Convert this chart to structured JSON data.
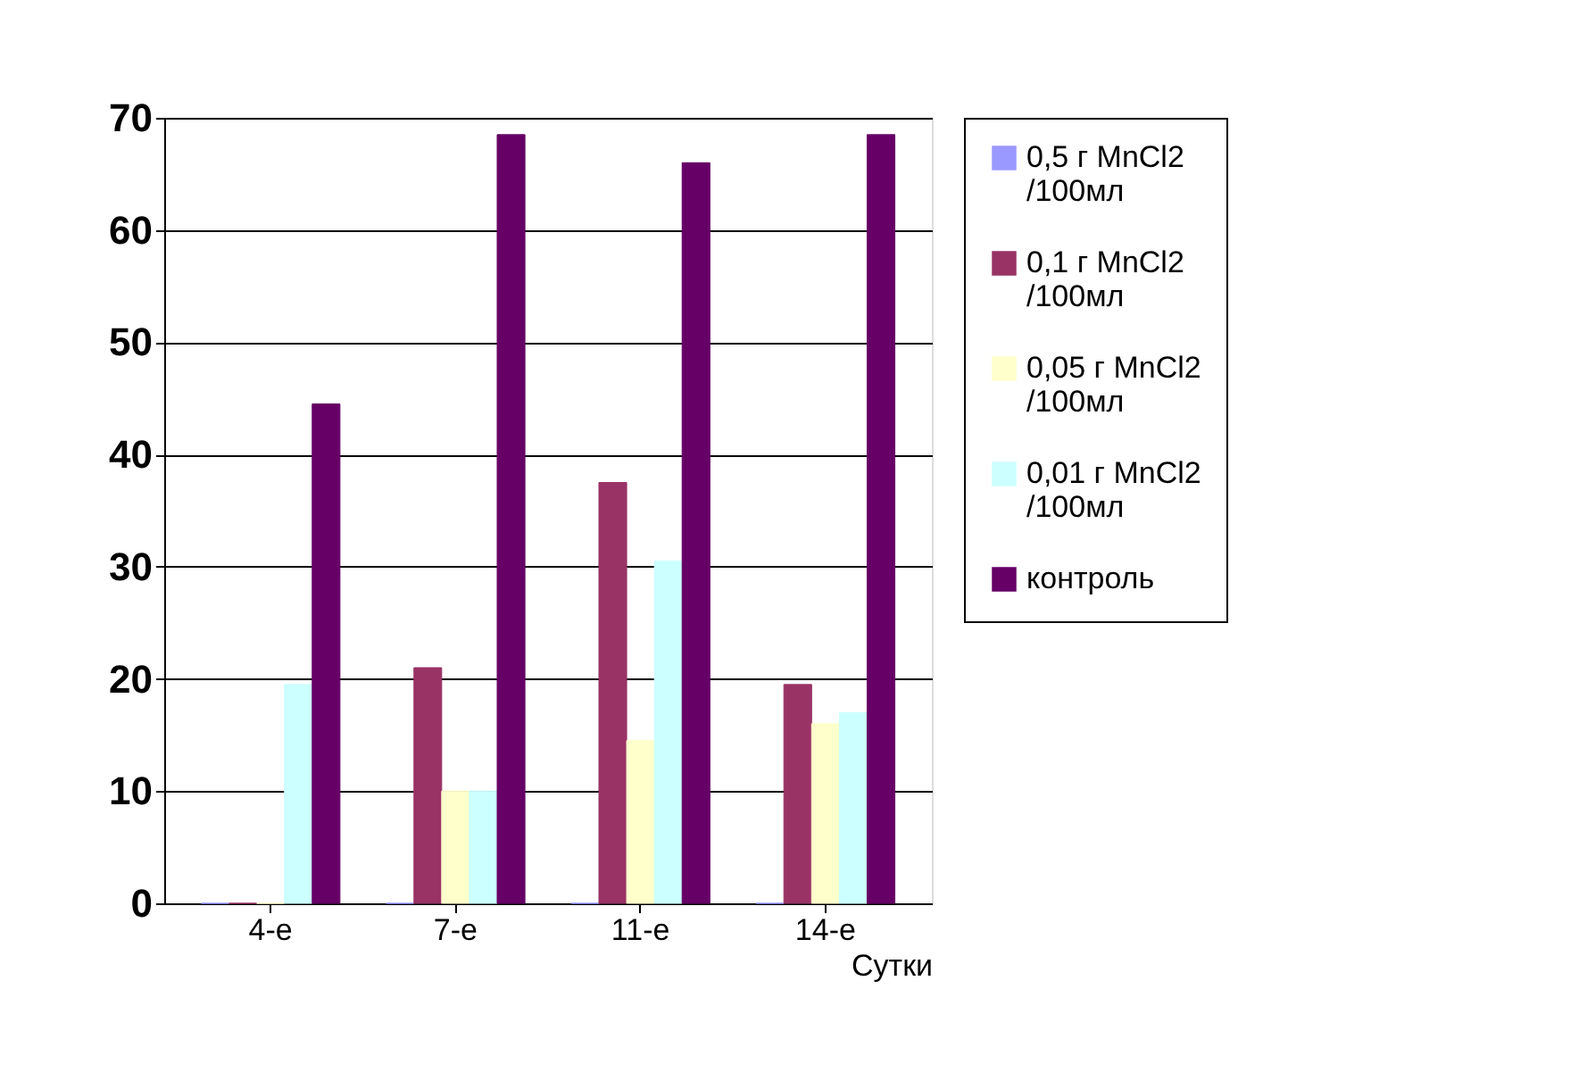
{
  "chart_data": {
    "type": "bar",
    "xlabel": "Сутки",
    "categories": [
      "4-е",
      "7-е",
      "11-е",
      "14-е"
    ],
    "series": [
      {
        "name": "0,5 г MnCl2 /100мл",
        "color": "#9999ff",
        "values": [
          0,
          0,
          0,
          0
        ]
      },
      {
        "name": "0,1 г MnCl2 /100мл",
        "color": "#993366",
        "values": [
          0,
          21,
          37.5,
          19.5
        ]
      },
      {
        "name": "0,05 г MnCl2 /100мл",
        "color": "#ffffcc",
        "values": [
          0,
          10,
          14.5,
          16
        ]
      },
      {
        "name": "0,01 г MnCl2 /100мл",
        "color": "#ccffff",
        "values": [
          19.5,
          10,
          30.5,
          17
        ]
      },
      {
        "name": "контроль",
        "color": "#660066",
        "values": [
          44.5,
          68.5,
          66,
          68.5
        ]
      }
    ],
    "ylim": [
      0,
      70
    ],
    "yticks": [
      0,
      10,
      20,
      30,
      40,
      50,
      60,
      70
    ],
    "grid": "y",
    "legend": "right"
  }
}
